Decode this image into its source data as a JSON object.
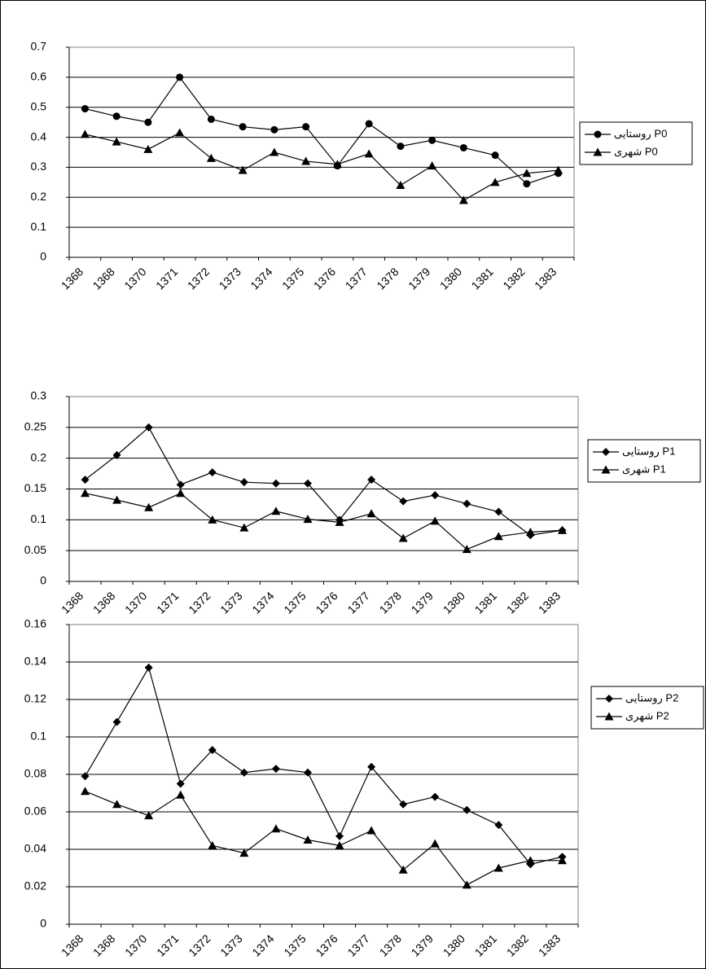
{
  "chart_data": [
    {
      "type": "line",
      "categories": [
        "1368",
        "1368",
        "1370",
        "1371",
        "1372",
        "1373",
        "1374",
        "1375",
        "1376",
        "1377",
        "1378",
        "1379",
        "1380",
        "1381",
        "1382",
        "1383"
      ],
      "series": [
        {
          "name": "روستایی P0",
          "color": "#000000",
          "marker": "circle",
          "values": [
            0.495,
            0.47,
            0.45,
            0.6,
            0.46,
            0.435,
            0.425,
            0.435,
            0.305,
            0.445,
            0.37,
            0.39,
            0.365,
            0.34,
            0.245,
            0.28
          ]
        },
        {
          "name": "شهری P0",
          "color": "#000000",
          "marker": "triangle",
          "values": [
            0.41,
            0.385,
            0.36,
            0.415,
            0.33,
            0.29,
            0.35,
            0.32,
            0.31,
            0.345,
            0.24,
            0.305,
            0.19,
            0.25,
            0.28,
            0.29
          ]
        }
      ],
      "ylim": [
        0,
        0.7
      ],
      "yticks": [
        0,
        0.1,
        0.2,
        0.3,
        0.4,
        0.5,
        0.6,
        0.7
      ],
      "grid": true,
      "legend": "right"
    },
    {
      "type": "line",
      "categories": [
        "1368",
        "1368",
        "1370",
        "1371",
        "1372",
        "1373",
        "1374",
        "1375",
        "1376",
        "1377",
        "1378",
        "1379",
        "1380",
        "1381",
        "1382",
        "1383"
      ],
      "series": [
        {
          "name": "روستایی P1",
          "color": "#000000",
          "marker": "diamond",
          "values": [
            0.165,
            0.205,
            0.25,
            0.157,
            0.177,
            0.161,
            0.159,
            0.159,
            0.1,
            0.165,
            0.13,
            0.14,
            0.126,
            0.113,
            0.075,
            0.083
          ]
        },
        {
          "name": "شهری P1",
          "color": "#000000",
          "marker": "triangle",
          "values": [
            0.143,
            0.132,
            0.12,
            0.143,
            0.1,
            0.087,
            0.114,
            0.101,
            0.096,
            0.11,
            0.07,
            0.098,
            0.052,
            0.073,
            0.08,
            0.083
          ]
        }
      ],
      "ylim": [
        0,
        0.3
      ],
      "yticks": [
        0,
        0.05,
        0.1,
        0.15,
        0.2,
        0.25,
        0.3
      ],
      "grid": true,
      "legend": "right"
    },
    {
      "type": "line",
      "categories": [
        "1368",
        "1368",
        "1370",
        "1371",
        "1372",
        "1373",
        "1374",
        "1375",
        "1376",
        "1377",
        "1378",
        "1379",
        "1380",
        "1381",
        "1382",
        "1383"
      ],
      "series": [
        {
          "name": "روستایی P2",
          "color": "#000000",
          "marker": "diamond",
          "values": [
            0.079,
            0.108,
            0.137,
            0.075,
            0.093,
            0.081,
            0.083,
            0.081,
            0.047,
            0.084,
            0.064,
            0.068,
            0.061,
            0.053,
            0.032,
            0.036
          ]
        },
        {
          "name": "شهری P2",
          "color": "#000000",
          "marker": "triangle",
          "values": [
            0.071,
            0.064,
            0.058,
            0.069,
            0.042,
            0.038,
            0.051,
            0.045,
            0.042,
            0.05,
            0.029,
            0.043,
            0.021,
            0.03,
            0.034,
            0.034
          ]
        }
      ],
      "ylim": [
        0,
        0.16
      ],
      "yticks": [
        0,
        0.02,
        0.04,
        0.06,
        0.08,
        0.1,
        0.12,
        0.14,
        0.16
      ],
      "grid": true,
      "legend": "right"
    }
  ]
}
